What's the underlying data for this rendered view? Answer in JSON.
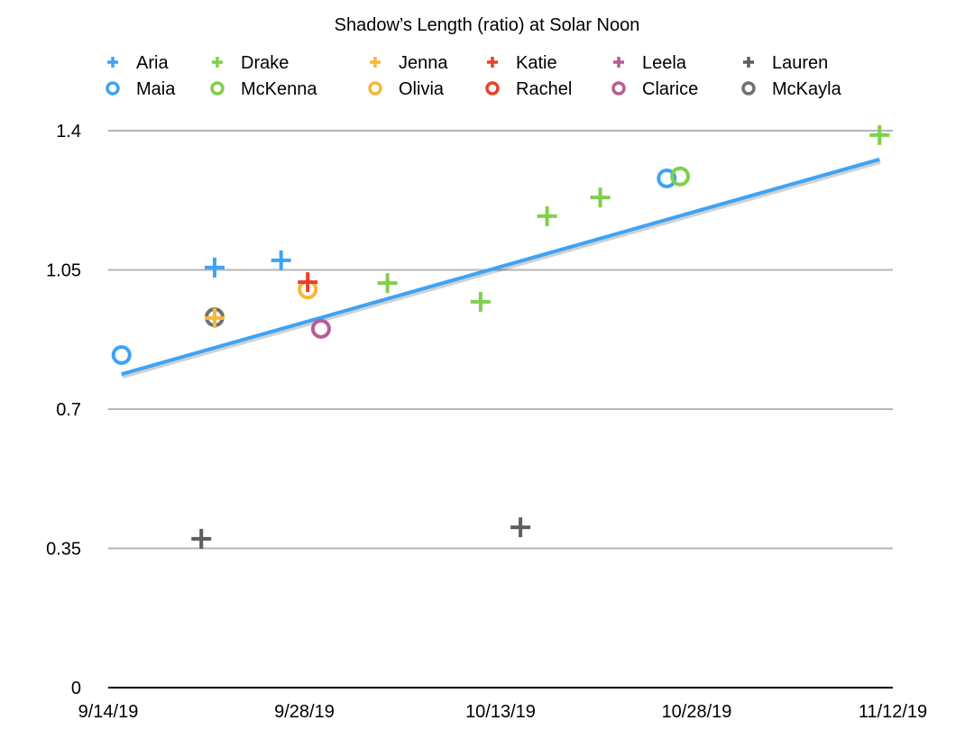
{
  "chart_data": {
    "type": "scatter",
    "title": "Shadow’s Length (ratio) at Solar Noon",
    "xlabel": "",
    "ylabel": "",
    "xlim": [
      "2019-09-14",
      "2019-11-12"
    ],
    "x_tick_labels": [
      "9/14/19",
      "9/28/19",
      "10/13/19",
      "10/28/19",
      "11/12/19"
    ],
    "ylim": [
      0,
      1.4
    ],
    "y_ticks": [
      0,
      0.35,
      0.7,
      1.05,
      1.4
    ],
    "y_tick_labels": [
      "0",
      "0.35",
      "0.7",
      "1.05",
      "1.4"
    ],
    "grid": true,
    "legend_placement": "top",
    "series": [
      {
        "name": "Aria",
        "marker": "plus",
        "color": "#3ea3f5",
        "points": [
          [
            "2019-09-22",
            1.056
          ],
          [
            "2019-09-27",
            1.074
          ]
        ]
      },
      {
        "name": "Drake",
        "marker": "plus",
        "color": "#7ed04a",
        "points": [
          [
            "2019-10-05",
            1.017
          ],
          [
            "2019-10-12",
            0.97
          ],
          [
            "2019-10-17",
            1.185
          ],
          [
            "2019-10-21",
            1.232
          ],
          [
            "2019-11-11",
            1.389
          ]
        ]
      },
      {
        "name": "Jenna",
        "marker": "plus",
        "color": "#f5b93a",
        "points": [
          [
            "2019-09-22",
            0.929
          ]
        ]
      },
      {
        "name": "Katie",
        "marker": "plus",
        "color": "#e8412a",
        "points": [
          [
            "2019-09-29",
            1.019
          ]
        ]
      },
      {
        "name": "Leela",
        "marker": "plus",
        "color": "#b85c95",
        "points": []
      },
      {
        "name": "Lauren",
        "marker": "plus",
        "color": "#5e5e5e",
        "points": [
          [
            "2019-09-21",
            0.374
          ],
          [
            "2019-10-15",
            0.403
          ]
        ]
      },
      {
        "name": "Maia",
        "marker": "circle",
        "color": "#3ea3f5",
        "points": [
          [
            "2019-09-15",
            0.836
          ],
          [
            "2019-10-26",
            1.28
          ]
        ]
      },
      {
        "name": "McKenna",
        "marker": "circle",
        "color": "#7ed04a",
        "points": [
          [
            "2019-10-27",
            1.285
          ]
        ]
      },
      {
        "name": "Olivia",
        "marker": "circle",
        "color": "#f5b93a",
        "points": [
          [
            "2019-09-29",
            1.001
          ]
        ]
      },
      {
        "name": "Rachel",
        "marker": "circle",
        "color": "#e8412a",
        "points": []
      },
      {
        "name": "Clarice",
        "marker": "circle",
        "color": "#b85c95",
        "points": [
          [
            "2019-09-30",
            0.902
          ]
        ]
      },
      {
        "name": "McKayla",
        "marker": "circle",
        "color": "#707070",
        "points": [
          [
            "2019-09-22",
            0.931
          ]
        ]
      }
    ],
    "trendline": {
      "color": "#3ea3f5",
      "points": [
        [
          "2019-09-15",
          0.788
        ],
        [
          "2019-11-11",
          1.328
        ]
      ]
    }
  }
}
